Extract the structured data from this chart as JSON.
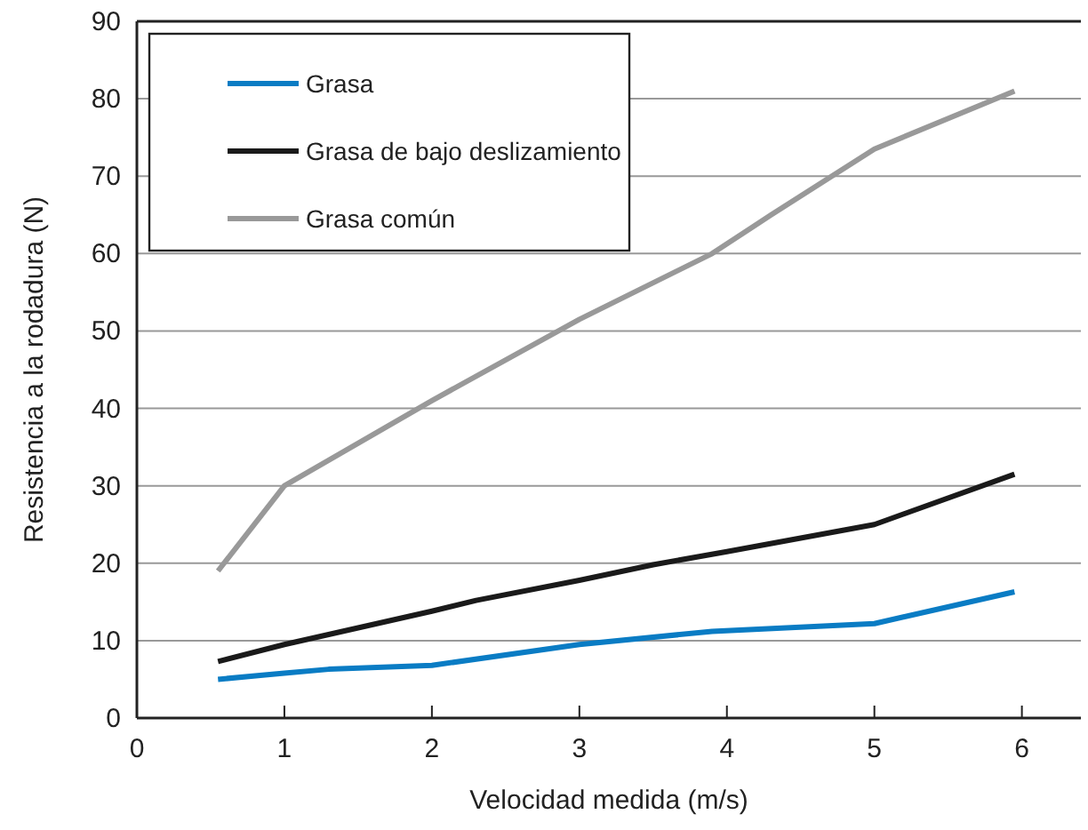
{
  "chart_data": {
    "type": "line",
    "xlabel": "Velocidad medida (m/s)",
    "ylabel": "Resistencia a la rodadura (N)",
    "xlim": [
      0,
      6.4
    ],
    "xticks": [
      0,
      1,
      2,
      3,
      4,
      5,
      6
    ],
    "ylim": [
      0,
      90
    ],
    "yticks": [
      0,
      10,
      20,
      30,
      40,
      50,
      60,
      70,
      80,
      90
    ],
    "grid": "y",
    "legend": "top left",
    "series": [
      {
        "name": "Grasa",
        "color": "#0a7cc4",
        "x": [
          0.55,
          1,
          1.3,
          2,
          3,
          3.9,
          5,
          5.95
        ],
        "values": [
          5,
          5.8,
          6.3,
          6.8,
          9.5,
          11.2,
          12.2,
          16.3
        ]
      },
      {
        "name": "Grasa de bajo deslizamiento",
        "color": "#1a1a1a",
        "x": [
          0.55,
          1,
          2,
          2.3,
          3,
          3.5,
          4,
          5,
          5.95
        ],
        "values": [
          7.3,
          9.5,
          13.8,
          15.2,
          17.8,
          19.8,
          21.5,
          25,
          31.5
        ]
      },
      {
        "name": "Grasa común",
        "color": "#999999",
        "x": [
          0.55,
          1,
          2,
          3,
          3.9,
          4.3,
          5,
          5.95
        ],
        "values": [
          19,
          30,
          41,
          51.5,
          60,
          65,
          73.5,
          81
        ]
      }
    ]
  }
}
